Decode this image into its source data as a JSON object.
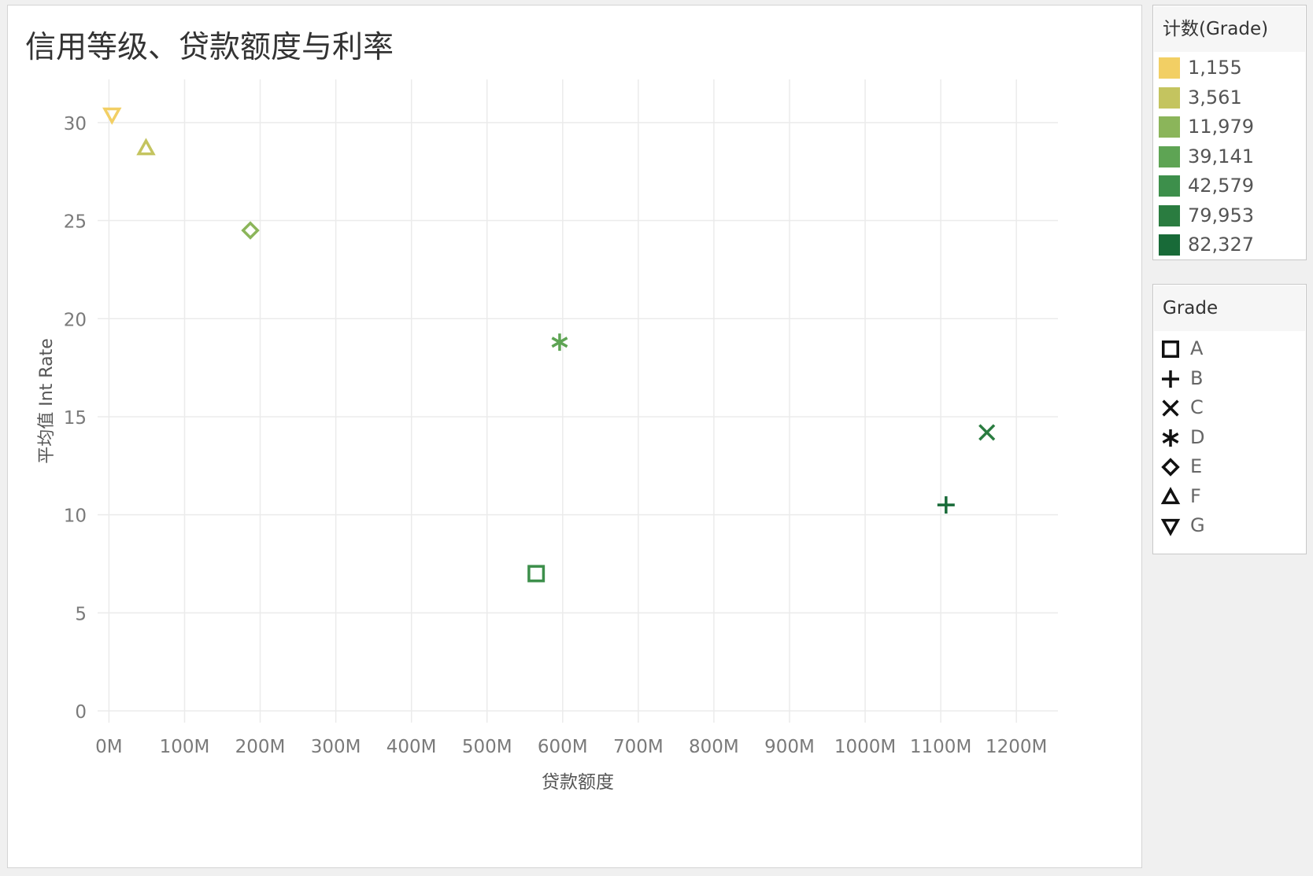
{
  "chart_data": {
    "type": "scatter",
    "title": "信用等级、贷款额度与利率",
    "xlabel": "贷款额度",
    "ylabel": "平均值 Int Rate",
    "xlim": [
      -15,
      1255
    ],
    "ylim": [
      -0.6,
      32.2
    ],
    "x_ticks": [
      0,
      100,
      200,
      300,
      400,
      500,
      600,
      700,
      800,
      900,
      1000,
      1100,
      1200
    ],
    "x_tick_labels": [
      "0M",
      "100M",
      "200M",
      "300M",
      "400M",
      "500M",
      "600M",
      "700M",
      "800M",
      "900M",
      "1000M",
      "1100M",
      "1200M"
    ],
    "y_ticks": [
      0,
      5,
      10,
      15,
      20,
      25,
      30
    ],
    "y_tick_labels": [
      "0",
      "5",
      "10",
      "15",
      "20",
      "25",
      "30"
    ],
    "grid": true,
    "points": [
      {
        "grade": "G",
        "x": 4,
        "y": 30.4,
        "count": 1155,
        "shape": "triangle-down",
        "color": "#f2cf64"
      },
      {
        "grade": "F",
        "x": 49,
        "y": 28.7,
        "count": 3561,
        "shape": "triangle-up",
        "color": "#c4c45f"
      },
      {
        "grade": "E",
        "x": 187,
        "y": 24.5,
        "count": 11979,
        "shape": "diamond",
        "color": "#8bb55a"
      },
      {
        "grade": "D",
        "x": 596,
        "y": 18.8,
        "count": 39141,
        "shape": "asterisk",
        "color": "#5ea454"
      },
      {
        "grade": "A",
        "x": 565,
        "y": 7.0,
        "count": 42579,
        "shape": "square",
        "color": "#3d8f4b"
      },
      {
        "grade": "C",
        "x": 1161,
        "y": 14.2,
        "count": 79953,
        "shape": "cross",
        "color": "#2a7c40"
      },
      {
        "grade": "B",
        "x": 1107,
        "y": 10.5,
        "count": 82327,
        "shape": "plus",
        "color": "#186a38"
      }
    ]
  },
  "legend_color": {
    "title": "计数(Grade)",
    "items": [
      {
        "label": "1,155",
        "color": "#f2cf64"
      },
      {
        "label": "3,561",
        "color": "#c4c45f"
      },
      {
        "label": "11,979",
        "color": "#8bb55a"
      },
      {
        "label": "39,141",
        "color": "#5ea454"
      },
      {
        "label": "42,579",
        "color": "#3d8f4b"
      },
      {
        "label": "79,953",
        "color": "#2a7c40"
      },
      {
        "label": "82,327",
        "color": "#186a38"
      }
    ]
  },
  "legend_shape": {
    "title": "Grade",
    "items": [
      {
        "label": "A",
        "shape": "square"
      },
      {
        "label": "B",
        "shape": "plus"
      },
      {
        "label": "C",
        "shape": "cross"
      },
      {
        "label": "D",
        "shape": "asterisk"
      },
      {
        "label": "E",
        "shape": "diamond"
      },
      {
        "label": "F",
        "shape": "triangle-up"
      },
      {
        "label": "G",
        "shape": "triangle-down"
      }
    ]
  }
}
